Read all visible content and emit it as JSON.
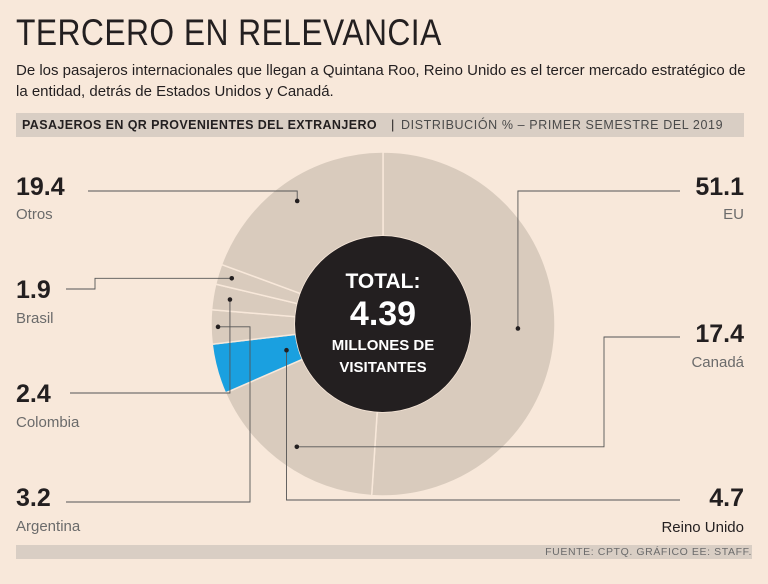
{
  "header": {
    "title": "TERCERO EN RELEVANCIA",
    "subtitle": "De los pasajeros internacionales que llegan a Quintana Roo, Reino Unido es el tercer mercado estratégico de la entidad, detrás de Estados Unidos y Canadá."
  },
  "section_bar": {
    "main": "PASAJEROS EN QR PROVENIENTES DEL EXTRANJERO",
    "separator": "|",
    "sub": "DISTRIBUCIÓN % – PRIMER SEMESTRE DEL 2019"
  },
  "center": {
    "line1": "TOTAL:",
    "line2": "4.39",
    "line3": "MILLONES DE",
    "line4": "VISITANTES"
  },
  "source": "FUENTE: CPTQ. GRÁFICO EE: STAFF.",
  "colors": {
    "background": "#f8e8da",
    "slice": "#d9cbbd",
    "highlight": "#1aa0e0",
    "center": "#231f20"
  },
  "chart_data": {
    "type": "pie",
    "variant": "donut",
    "title": "PASAJEROS EN QR PROVENIENTES DEL EXTRANJERO",
    "unit": "%",
    "highlight": "Reino Unido",
    "slices": [
      {
        "name": "EU",
        "value": 51.1
      },
      {
        "name": "Canadá",
        "value": 17.4
      },
      {
        "name": "Reino Unido",
        "value": 4.7
      },
      {
        "name": "Argentina",
        "value": 3.2
      },
      {
        "name": "Colombia",
        "value": 2.4
      },
      {
        "name": "Brasil",
        "value": 1.9
      },
      {
        "name": "Otros",
        "value": 19.4
      }
    ],
    "labels": [
      {
        "name": "EU",
        "value": "51.1",
        "label": "EU",
        "side": "right"
      },
      {
        "name": "Canadá",
        "value": "17.4",
        "label": "Canadá",
        "side": "right"
      },
      {
        "name": "Reino Unido",
        "value": "4.7",
        "label": "Reino Unido",
        "side": "right"
      },
      {
        "name": "Argentina",
        "value": "3.2",
        "label": "Argentina",
        "side": "left"
      },
      {
        "name": "Colombia",
        "value": "2.4",
        "label": "Colombia",
        "side": "left"
      },
      {
        "name": "Brasil",
        "value": "1.9",
        "label": "Brasil",
        "side": "left"
      },
      {
        "name": "Otros",
        "value": "19.4",
        "label": "Otros",
        "side": "left"
      }
    ]
  }
}
